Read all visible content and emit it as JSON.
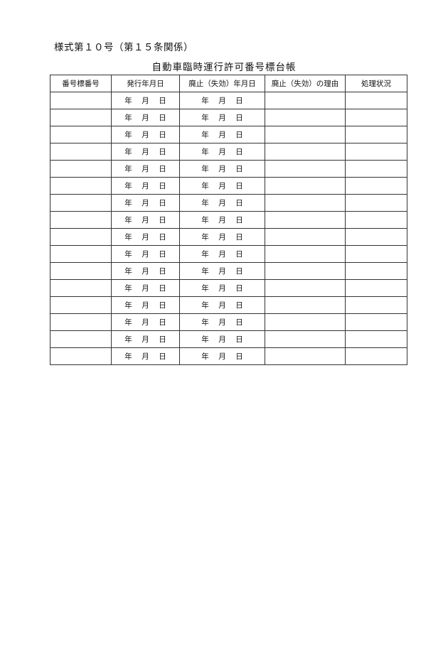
{
  "form_number": "様式第１０号（第１５条関係）",
  "title": "自動車臨時運行許可番号標台帳",
  "table": {
    "headers": [
      "番号標番号",
      "発行年月日",
      "廃止（失効）年月日",
      "廃止（失効）の理由",
      "処理状況"
    ],
    "date_placeholder": {
      "year": "年",
      "month": "月",
      "day": "日"
    },
    "row_count": 16
  }
}
